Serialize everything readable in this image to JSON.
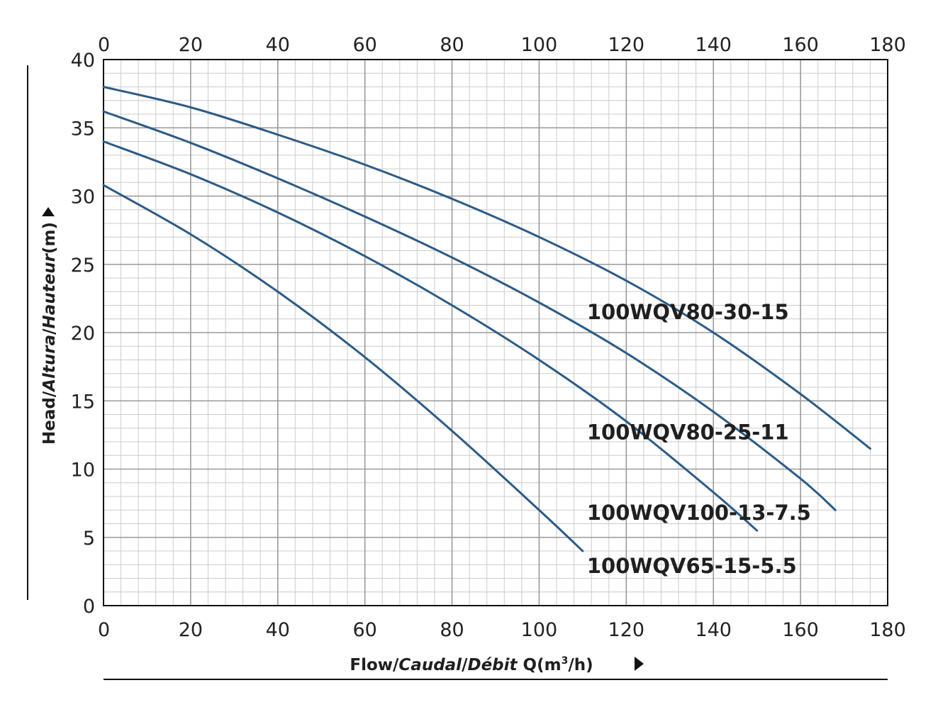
{
  "chart_data": {
    "type": "line",
    "title": "",
    "xlabel": {
      "prefix": "Flow/",
      "italic1": "Caudal",
      "sep": "/",
      "italic2": "Débit",
      "suffix": " Q(m",
      "sup": "3",
      "end": "/h)"
    },
    "ylabel": {
      "prefix": "Head/",
      "italic1": "Altura",
      "sep": "/",
      "italic2": "Hauteur",
      "suffix": "(m)"
    },
    "xlim": [
      0,
      180
    ],
    "ylim": [
      0,
      40
    ],
    "x_ticks": [
      0,
      20,
      40,
      60,
      80,
      100,
      120,
      140,
      160,
      180
    ],
    "y_ticks": [
      0,
      5,
      10,
      15,
      20,
      25,
      30,
      35,
      40
    ],
    "x_minor_step": 4,
    "y_minor_step": 1,
    "grid": true,
    "series": [
      {
        "name": "100WQV80-30-15",
        "label_at": [
          110,
          21.5
        ],
        "x": [
          0,
          20,
          40,
          60,
          80,
          100,
          120,
          140,
          160,
          176
        ],
        "y": [
          38,
          36.5,
          34.5,
          32.3,
          29.8,
          27,
          23.8,
          20,
          15.5,
          11.5
        ]
      },
      {
        "name": "100WQV80-25-11",
        "label_at": [
          110,
          12.7
        ],
        "x": [
          0,
          20,
          40,
          60,
          80,
          100,
          120,
          140,
          160,
          168
        ],
        "y": [
          36.2,
          33.9,
          31.3,
          28.5,
          25.5,
          22.2,
          18.5,
          14.2,
          9.3,
          7
        ]
      },
      {
        "name": "100WQV100-13-7.5",
        "label_at": [
          110,
          6.8
        ],
        "x": [
          0,
          20,
          40,
          60,
          80,
          100,
          120,
          140,
          150
        ],
        "y": [
          34,
          31.6,
          28.8,
          25.6,
          22,
          18,
          13.5,
          8.3,
          5.5
        ]
      },
      {
        "name": "100WQV65-15-5.5",
        "label_at": [
          110,
          2.9
        ],
        "x": [
          0,
          20,
          40,
          60,
          80,
          100,
          110
        ],
        "y": [
          30.8,
          27.2,
          23,
          18.2,
          12.8,
          7,
          4
        ]
      }
    ],
    "colors": {
      "curve": "#2c5b86",
      "major_grid": "#9a9a9a",
      "minor_grid": "#cccccc",
      "frame": "#111111",
      "marker": "#111111"
    },
    "markers": {
      "y_axis_arrow": "triangle-up",
      "x_axis_arrow": "triangle-right"
    }
  }
}
